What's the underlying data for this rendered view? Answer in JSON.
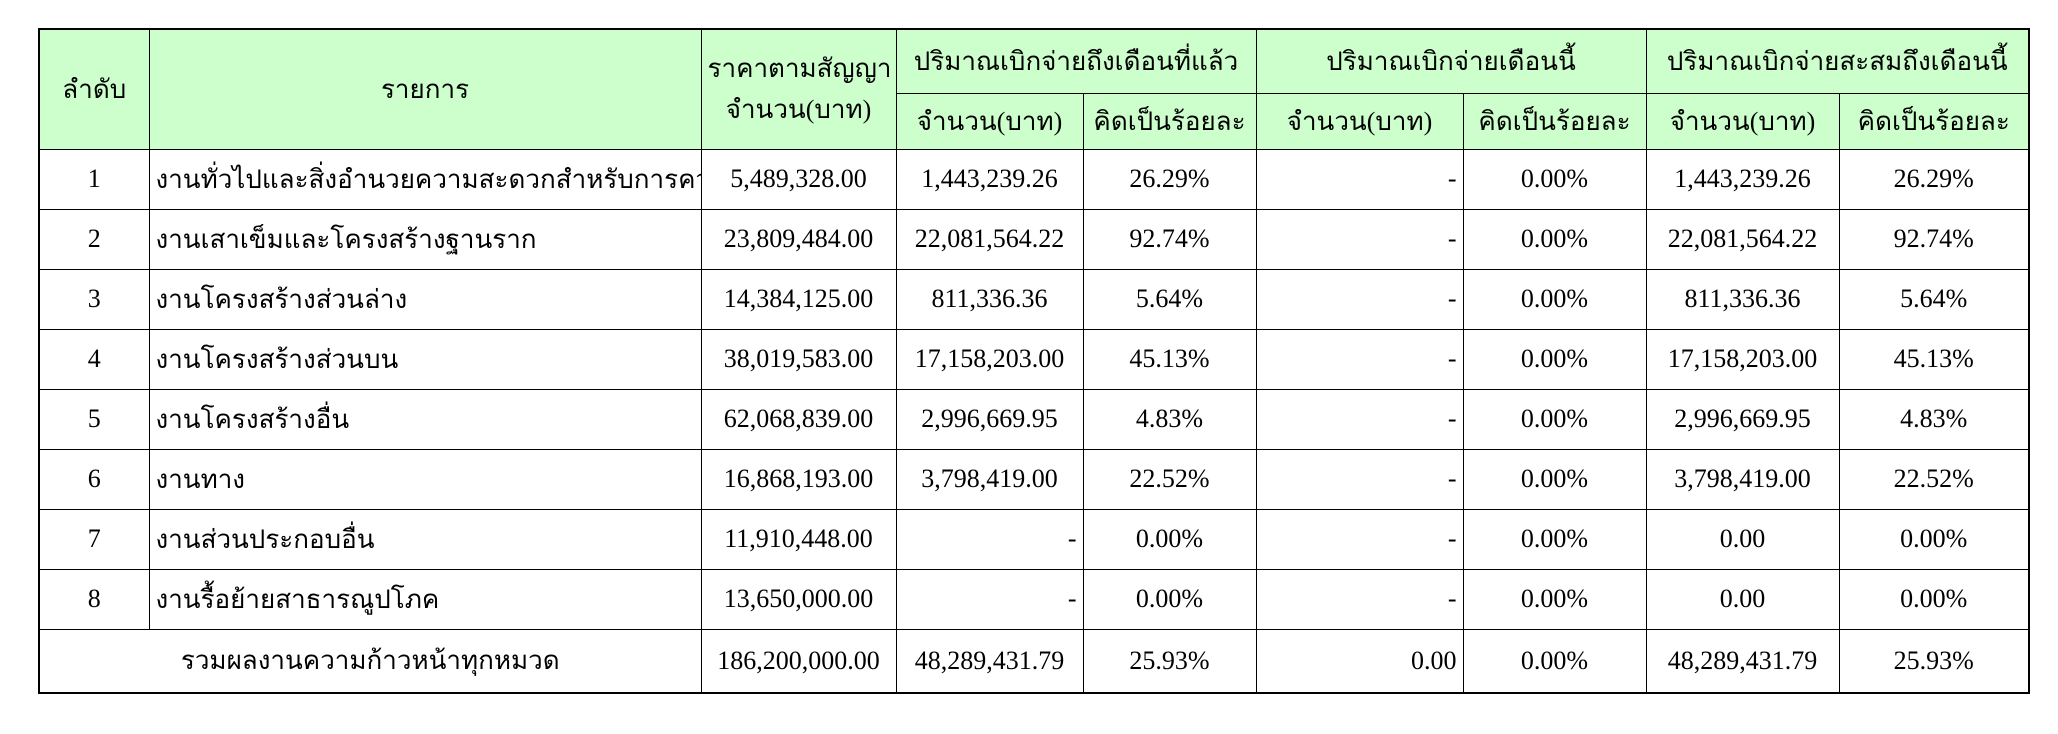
{
  "table": {
    "colors": {
      "header_bg": "#ccffcc",
      "border": "#000000",
      "background": "#ffffff"
    },
    "header": {
      "col_no": "ลำดับ",
      "col_item": "รายการ",
      "col_contract_line1": "ราคาตามสัญญา",
      "col_contract_line2": "จำนวน(บาท)",
      "group_prev": "ปริมาณเบิกจ่ายถึงเดือนที่แล้ว",
      "group_current": "ปริมาณเบิกจ่ายเดือนนี้",
      "group_cumulative": "ปริมาณเบิกจ่ายสะสมถึงเดือนนี้",
      "sub_amount": "จำนวน(บาท)",
      "sub_percent": "คิดเป็นร้อยละ"
    },
    "rows": [
      {
        "no": "1",
        "item": "งานทั่วไปและสิ่งอำนวยความสะดวกสำหรับการควบคุมงาน",
        "contract": "5,489,328.00",
        "prev_amount": "1,443,239.26",
        "prev_percent": "26.29%",
        "cur_amount": "-",
        "cur_percent": "0.00%",
        "cum_amount": "1,443,239.26",
        "cum_percent": "26.29%"
      },
      {
        "no": "2",
        "item": "งานเสาเข็มและโครงสร้างฐานราก",
        "contract": "23,809,484.00",
        "prev_amount": "22,081,564.22",
        "prev_percent": "92.74%",
        "cur_amount": "-",
        "cur_percent": "0.00%",
        "cum_amount": "22,081,564.22",
        "cum_percent": "92.74%"
      },
      {
        "no": "3",
        "item": "งานโครงสร้างส่วนล่าง",
        "contract": "14,384,125.00",
        "prev_amount": "811,336.36",
        "prev_percent": "5.64%",
        "cur_amount": "-",
        "cur_percent": "0.00%",
        "cum_amount": "811,336.36",
        "cum_percent": "5.64%"
      },
      {
        "no": "4",
        "item": "งานโครงสร้างส่วนบน",
        "contract": "38,019,583.00",
        "prev_amount": "17,158,203.00",
        "prev_percent": "45.13%",
        "cur_amount": "-",
        "cur_percent": "0.00%",
        "cum_amount": "17,158,203.00",
        "cum_percent": "45.13%"
      },
      {
        "no": "5",
        "item": "งานโครงสร้างอื่น",
        "contract": "62,068,839.00",
        "prev_amount": "2,996,669.95",
        "prev_percent": "4.83%",
        "cur_amount": "-",
        "cur_percent": "0.00%",
        "cum_amount": "2,996,669.95",
        "cum_percent": "4.83%"
      },
      {
        "no": "6",
        "item": "งานทาง",
        "contract": "16,868,193.00",
        "prev_amount": "3,798,419.00",
        "prev_percent": "22.52%",
        "cur_amount": "-",
        "cur_percent": "0.00%",
        "cum_amount": "3,798,419.00",
        "cum_percent": "22.52%"
      },
      {
        "no": "7",
        "item": "งานส่วนประกอบอื่น",
        "contract": "11,910,448.00",
        "prev_amount": "-",
        "prev_percent": "0.00%",
        "cur_amount": "-",
        "cur_percent": "0.00%",
        "cum_amount": "0.00",
        "cum_percent": "0.00%"
      },
      {
        "no": "8",
        "item": "งานรื้อย้ายสาธารณูปโภค",
        "contract": "13,650,000.00",
        "prev_amount": "-",
        "prev_percent": "0.00%",
        "cur_amount": "-",
        "cur_percent": "0.00%",
        "cum_amount": "0.00",
        "cum_percent": "0.00%"
      }
    ],
    "total": {
      "label": "รวมผลงานความก้าวหน้าทุกหมวด",
      "contract": "186,200,000.00",
      "prev_amount": "48,289,431.79",
      "prev_percent": "25.93%",
      "cur_amount": "0.00",
      "cur_percent": "0.00%",
      "cum_amount": "48,289,431.79",
      "cum_percent": "25.93%"
    }
  }
}
